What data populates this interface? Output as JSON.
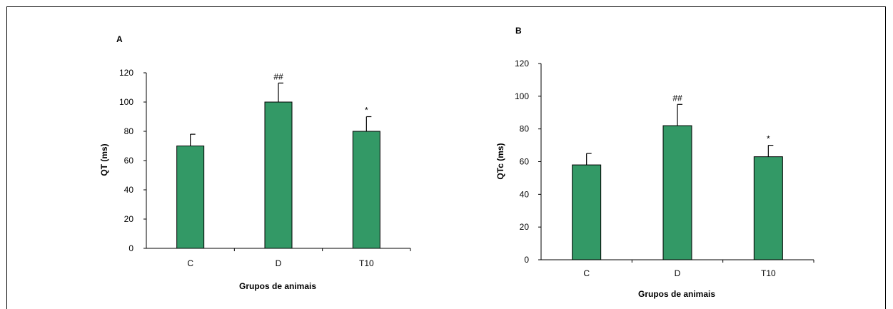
{
  "chart_data": [
    {
      "type": "bar",
      "panel_label": "A",
      "categories": [
        "C",
        "D",
        "T10"
      ],
      "values": [
        70,
        100,
        80
      ],
      "error": [
        8,
        13,
        10
      ],
      "annotations": [
        "",
        "##",
        "*"
      ],
      "xlabel": "Grupos de animais",
      "ylabel": "QT (ms)",
      "ylim": [
        0,
        120
      ],
      "yticks": [
        0,
        20,
        40,
        60,
        80,
        100,
        120
      ],
      "bar_color": "#339966",
      "grid": false
    },
    {
      "type": "bar",
      "panel_label": "B",
      "categories": [
        "C",
        "D",
        "T10"
      ],
      "values": [
        58,
        82,
        63
      ],
      "error": [
        7,
        13,
        7
      ],
      "annotations": [
        "",
        "##",
        "*"
      ],
      "xlabel": "Grupos de animais",
      "ylabel": "QTc (ms)",
      "ylim": [
        0,
        120
      ],
      "yticks": [
        0,
        20,
        40,
        60,
        80,
        100,
        120
      ],
      "bar_color": "#339966",
      "grid": false
    }
  ]
}
